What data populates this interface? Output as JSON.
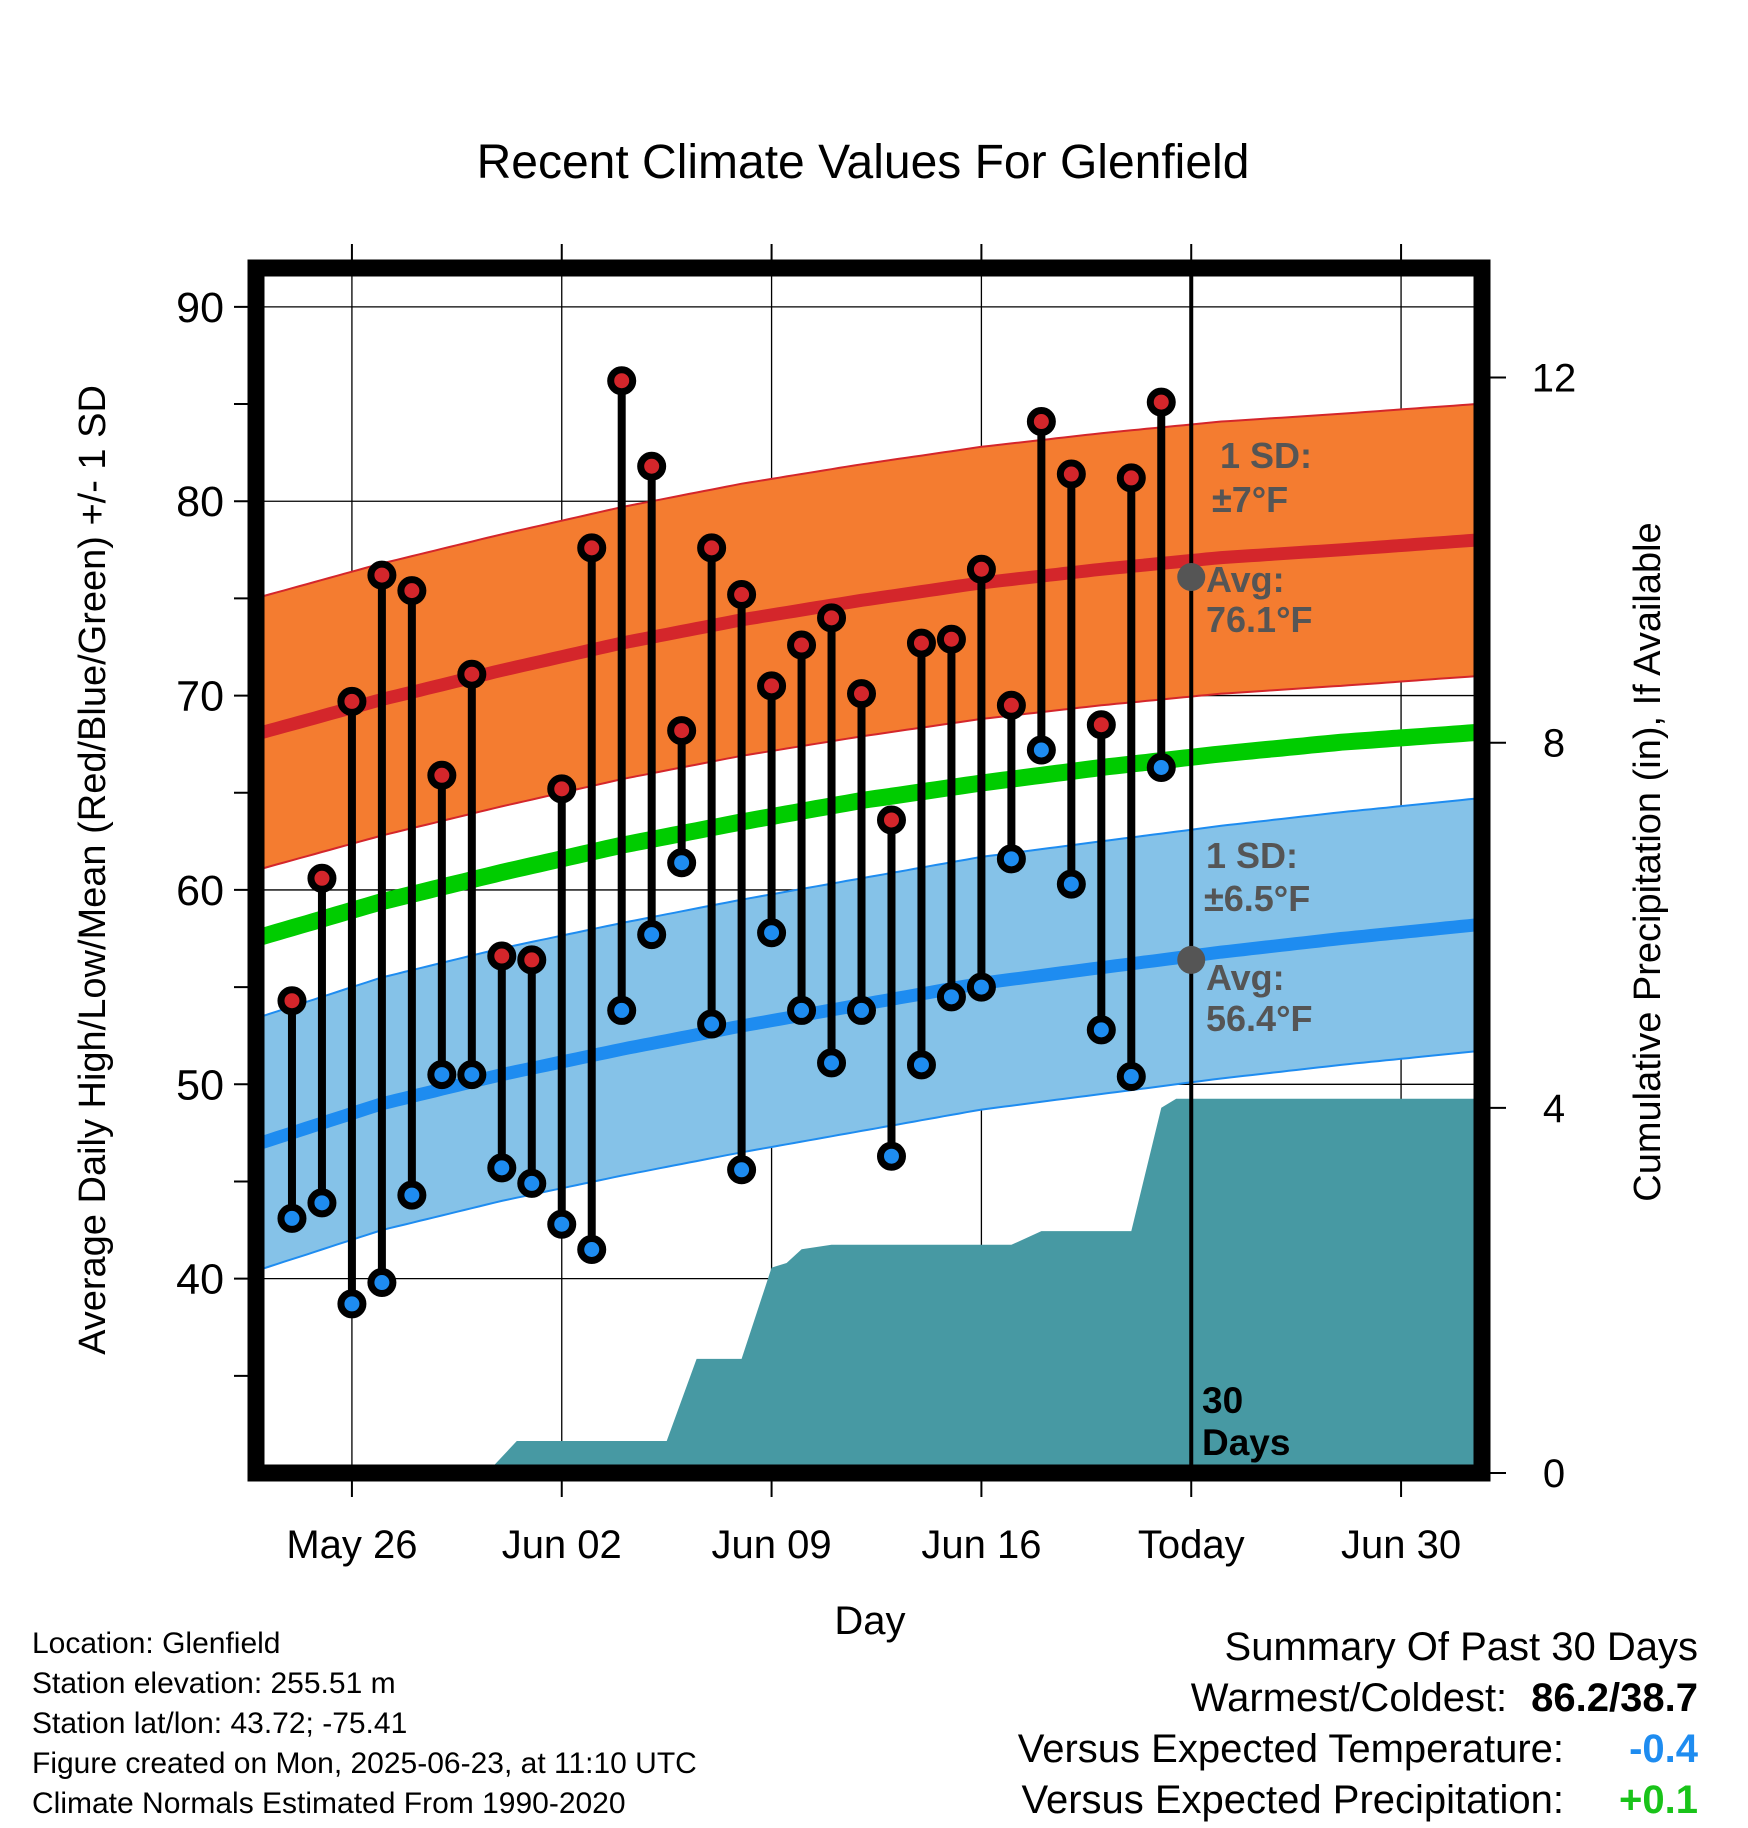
{
  "chart_data": {
    "type": "line",
    "title": "Recent Climate Values For Glenfield",
    "xlabel": "Day",
    "ylabel": "Average Daily High/Low/Mean (Red/Blue/Green) +/- 1 SD",
    "y2label": "Cumulative Precipitation (in), If Available",
    "x_ticks": [
      "May 26",
      "Jun 02",
      "Jun 09",
      "Jun 16",
      "Today",
      "Jun 30"
    ],
    "x_tick_days": [
      2,
      9,
      16,
      23,
      30,
      37
    ],
    "x_range_days": [
      -1.2,
      39.7
    ],
    "ylim": [
      30,
      92
    ],
    "y_ticks": [
      40,
      50,
      60,
      70,
      80,
      90
    ],
    "y2lim": [
      0,
      13.2
    ],
    "y2_ticks": [
      0,
      4,
      8,
      12
    ],
    "grid": true,
    "colors": {
      "high_band": "#f47c30",
      "high_line": "#d4262b",
      "low_band": "#85c2e8",
      "low_line": "#1e8cf0",
      "mean_line": "#00cc00",
      "precip": "#4799a3",
      "high_dot": "#d4262b",
      "low_dot": "#1e8cf0",
      "annotation": "#555555"
    },
    "normals": {
      "days": [
        -1,
        3,
        7,
        11,
        15,
        19,
        23,
        27,
        31,
        35,
        39.5
      ],
      "avg_high": [
        68.1,
        69.8,
        71.3,
        72.7,
        73.9,
        74.9,
        75.8,
        76.5,
        77.1,
        77.5,
        78.0
      ],
      "avg_low": [
        47.0,
        49.0,
        50.5,
        51.8,
        53.0,
        54.1,
        55.2,
        56.0,
        56.8,
        57.5,
        58.2
      ],
      "avg_mean": [
        57.6,
        59.4,
        60.9,
        62.3,
        63.5,
        64.6,
        65.5,
        66.3,
        67.0,
        67.6,
        68.1
      ],
      "high_sd": 7,
      "low_sd": 6.5
    },
    "observations": {
      "days": [
        0,
        1,
        2,
        3,
        4,
        5,
        6,
        7,
        8,
        9,
        10,
        11,
        12,
        13,
        14,
        15,
        16,
        17,
        18,
        19,
        20,
        21,
        22,
        23,
        24,
        25,
        26,
        27,
        28
      ],
      "high": [
        54.3,
        60.6,
        69.7,
        76.2,
        75.4,
        65.9,
        71.1,
        56.6,
        56.4,
        65.2,
        77.6,
        86.2,
        81.8,
        68.2,
        77.6,
        75.2,
        70.5,
        72.6,
        74.0,
        70.1,
        63.6,
        72.7,
        72.9,
        76.5,
        69.5,
        84.1,
        81.4,
        68.5,
        81.2
      ],
      "low": [
        43.1,
        43.9,
        38.7,
        39.8,
        44.3,
        50.5,
        50.5,
        45.7,
        44.9,
        42.8,
        41.5,
        53.8,
        57.7,
        61.4,
        53.1,
        45.6,
        57.8,
        53.8,
        51.1,
        53.8,
        46.3,
        51.0,
        54.5,
        55.0,
        61.6,
        67.2,
        60.3,
        52.8,
        50.4
      ]
    },
    "extra_obs": {
      "day": 29,
      "high": 85.1,
      "low": 66.3
    },
    "precip_cumulative": {
      "days": [
        -0.5,
        6.5,
        7.5,
        12.5,
        13.5,
        15,
        16,
        16.5,
        17,
        18,
        24,
        25,
        27,
        28,
        29,
        29.5,
        39.5
      ],
      "values": [
        0,
        0,
        0.35,
        0.35,
        1.25,
        1.25,
        2.25,
        2.3,
        2.45,
        2.5,
        2.5,
        2.65,
        2.65,
        2.65,
        4.0,
        4.1,
        4.1
      ]
    },
    "today_marker": {
      "day": 30,
      "label": "30\nDays",
      "high_annotation": {
        "sd_label": "1 SD:",
        "sd_value": "±7°F",
        "avg_label": "Avg:",
        "avg_value": "76.1°F",
        "avg": 76.1
      },
      "low_annotation": {
        "sd_label": "1 SD:",
        "sd_value": "±6.5°F",
        "avg_label": "Avg:",
        "avg_value": "56.4°F",
        "avg": 56.4
      }
    }
  },
  "info": {
    "location": "Location: Glenfield",
    "elevation": "Station elevation: 255.51 m",
    "latlon": "Station lat/lon: 43.72; -75.41",
    "created": "Figure created on Mon, 2025-06-23, at 11:10 UTC",
    "normals": "Climate Normals Estimated From 1990-2020"
  },
  "summary": {
    "title": "Summary Of Past 30 Days",
    "warm_cold_label": "Warmest/Coldest:",
    "warm_cold_value": "86.2/38.7",
    "temp_label": "Versus Expected Temperature:",
    "temp_value": "-0.4",
    "temp_color": "#1e8cf0",
    "precip_label": "Versus Expected Precipitation:",
    "precip_value": "+0.1",
    "precip_color": "#19c319"
  }
}
